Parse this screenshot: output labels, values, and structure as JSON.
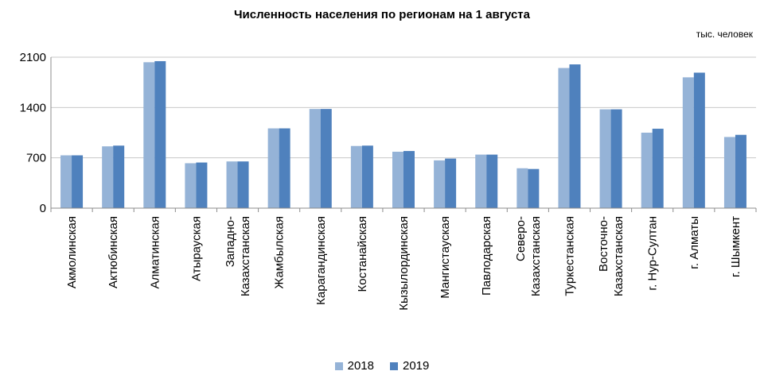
{
  "chart_data": {
    "type": "bar",
    "title": "Численность населения по регионам на 1 августа",
    "unit": "тыс. человек",
    "ylim": [
      0,
      2100
    ],
    "yticks": [
      0,
      700,
      1400,
      2100
    ],
    "grid": true,
    "legend_position": "bottom",
    "categories": [
      [
        "Акмолинская"
      ],
      [
        "Актюбинская"
      ],
      [
        "Алматинская"
      ],
      [
        "Атырауская"
      ],
      [
        "Западно-",
        "Казахстанская"
      ],
      [
        "Жамбылская"
      ],
      [
        "Карагандинская"
      ],
      [
        "Костанайская"
      ],
      [
        "Кызылординская"
      ],
      [
        "Мангистауская"
      ],
      [
        "Павлодарская"
      ],
      [
        "Северо-",
        "Казахстанская"
      ],
      [
        "Туркестанская"
      ],
      [
        "Восточно-",
        "Казахстанская"
      ],
      [
        "г. Нур-Султан"
      ],
      [
        "г. Алматы"
      ],
      [
        "г. Шымкент"
      ]
    ],
    "series": [
      {
        "name": "2018",
        "color": "#95B3D7",
        "values": [
          735,
          860,
          2030,
          625,
          650,
          1110,
          1380,
          865,
          785,
          665,
          745,
          555,
          1950,
          1375,
          1050,
          1820,
          990
        ]
      },
      {
        "name": "2019",
        "color": "#4F81BD",
        "values": [
          735,
          870,
          2045,
          635,
          650,
          1110,
          1380,
          870,
          795,
          690,
          745,
          545,
          2000,
          1375,
          1105,
          1885,
          1020
        ]
      }
    ]
  }
}
